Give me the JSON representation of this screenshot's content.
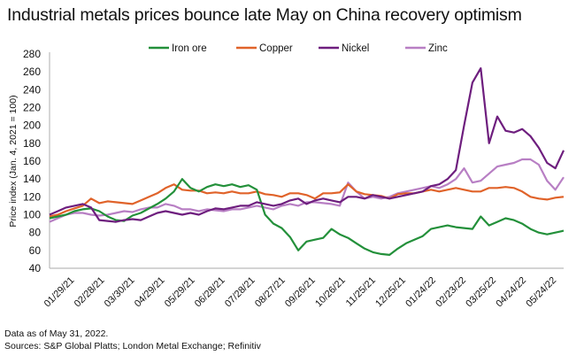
{
  "chart_data": {
    "type": "line",
    "title": "Industrial metals prices bounce late May on China recovery optimism",
    "xlabel": "",
    "ylabel": "Price index (Jan. 4, 2021 = 100)",
    "ylim": [
      40,
      280
    ],
    "yticks": [
      40,
      60,
      80,
      100,
      120,
      140,
      160,
      180,
      200,
      220,
      240,
      260,
      280
    ],
    "x_start": "01/04/21",
    "x_end": "05/31/22",
    "x_step_days": 10,
    "xtick_labels": [
      "01/29/21",
      "02/28/21",
      "03/30/21",
      "04/29/21",
      "05/29/21",
      "06/28/21",
      "07/28/21",
      "08/27/21",
      "09/26/21",
      "10/26/21",
      "11/25/21",
      "12/25/21",
      "01/24/22",
      "02/23/22",
      "03/25/22",
      "04/24/22",
      "05/24/22"
    ],
    "xtick_days": [
      25,
      55,
      85,
      115,
      145,
      175,
      205,
      235,
      265,
      295,
      325,
      355,
      385,
      415,
      445,
      475,
      505
    ],
    "x_domain_days": [
      0,
      512
    ],
    "legend_position": "top",
    "grid": false,
    "series": [
      {
        "name": "Iron ore",
        "color": "#23903a",
        "values": [
          96,
          98,
          100,
          104,
          106,
          107,
          104,
          98,
          94,
          93,
          99,
          102,
          107,
          112,
          118,
          126,
          140,
          130,
          126,
          131,
          134,
          132,
          134,
          131,
          133,
          128,
          100,
          90,
          85,
          75,
          60,
          70,
          72,
          74,
          84,
          78,
          74,
          68,
          62,
          58,
          56,
          55,
          62,
          68,
          72,
          76,
          84,
          86,
          88,
          86,
          85,
          84,
          98,
          88,
          92,
          96,
          94,
          90,
          84,
          80,
          78,
          80,
          82
        ]
      },
      {
        "name": "Copper",
        "color": "#e0632a",
        "values": [
          98,
          100,
          104,
          107,
          110,
          118,
          113,
          115,
          114,
          113,
          112,
          116,
          120,
          124,
          130,
          134,
          128,
          127,
          127,
          124,
          125,
          124,
          126,
          124,
          124,
          126,
          123,
          122,
          120,
          124,
          124,
          122,
          118,
          124,
          124,
          125,
          134,
          126,
          123,
          122,
          121,
          118,
          123,
          124,
          124,
          126,
          128,
          126,
          128,
          130,
          128,
          126,
          126,
          130,
          130,
          131,
          130,
          126,
          120,
          118,
          117,
          119,
          120
        ]
      },
      {
        "name": "Nickel",
        "color": "#6e1e7e",
        "values": [
          100,
          104,
          108,
          110,
          112,
          108,
          94,
          93,
          92,
          94,
          95,
          94,
          98,
          102,
          104,
          102,
          100,
          102,
          100,
          104,
          107,
          106,
          108,
          110,
          110,
          114,
          112,
          110,
          112,
          116,
          118,
          112,
          116,
          118,
          116,
          114,
          120,
          120,
          118,
          122,
          120,
          118,
          120,
          122,
          124,
          126,
          132,
          134,
          140,
          150,
          200,
          248,
          264,
          180,
          210,
          194,
          192,
          196,
          188,
          175,
          158,
          152,
          172
        ]
      },
      {
        "name": "Zinc",
        "color": "#b87fc4",
        "values": [
          92,
          96,
          100,
          102,
          102,
          100,
          99,
          100,
          102,
          104,
          103,
          106,
          108,
          108,
          112,
          110,
          106,
          106,
          104,
          106,
          105,
          104,
          106,
          106,
          108,
          110,
          108,
          106,
          110,
          112,
          110,
          114,
          114,
          113,
          112,
          110,
          136,
          126,
          118,
          120,
          118,
          120,
          124,
          126,
          128,
          130,
          132,
          130,
          134,
          140,
          152,
          136,
          138,
          146,
          154,
          156,
          158,
          162,
          162,
          156,
          138,
          128,
          142
        ]
      }
    ]
  },
  "footnotes": {
    "line1": "Data as of May 31, 2022.",
    "line2": "Sources: S&P Global Platts; London Metal Exchange; Refinitiv"
  }
}
